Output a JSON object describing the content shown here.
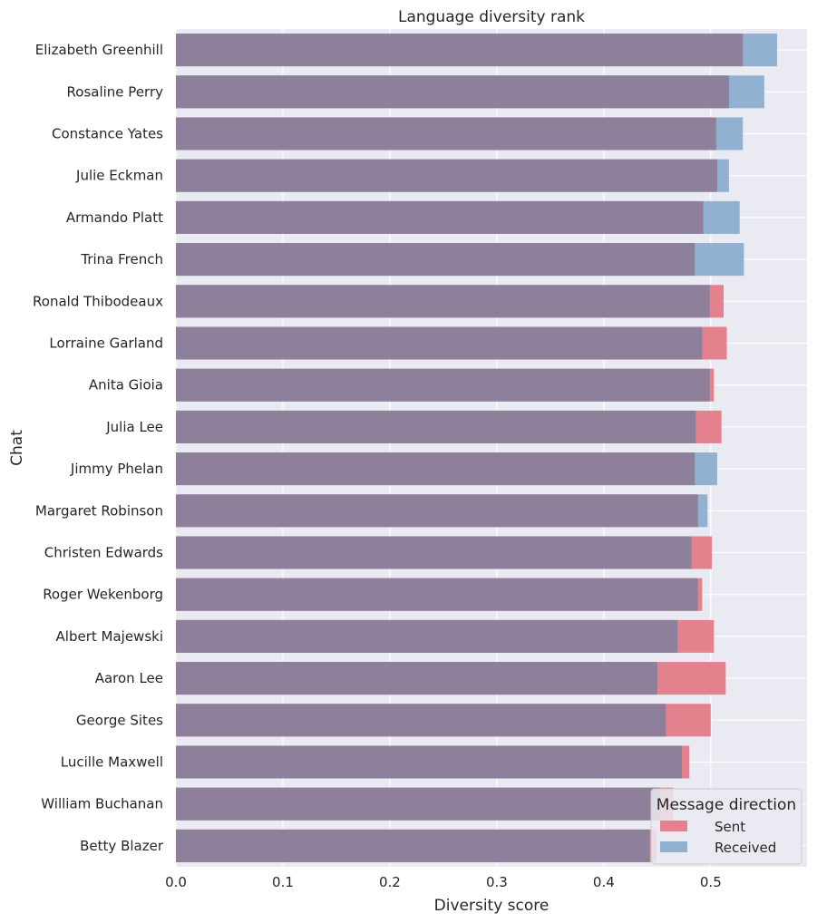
{
  "chart_data": {
    "type": "bar",
    "orientation": "horizontal",
    "title": "Language diversity rank",
    "xlabel": "Diversity score",
    "ylabel": "Chat",
    "xlim": [
      0,
      0.59
    ],
    "xticks": [
      "0.0",
      "0.1",
      "0.2",
      "0.3",
      "0.4",
      "0.5"
    ],
    "grid": true,
    "legend": {
      "title": "Message direction",
      "placement": "bottom-right",
      "entries": [
        "Sent",
        "Received"
      ]
    },
    "categories": [
      "Elizabeth Greenhill",
      "Rosaline Perry",
      "Constance Yates",
      "Julie Eckman",
      "Armando Platt",
      "Trina French",
      "Ronald Thibodeaux",
      "Lorraine Garland",
      "Anita Gioia",
      "Julia Lee",
      "Jimmy Phelan",
      "Margaret Robinson",
      "Christen Edwards",
      "Roger Wekenborg",
      "Albert Majewski",
      "Aaron Lee",
      "George Sites",
      "Lucille Maxwell",
      "William Buchanan",
      "Betty Blazer"
    ],
    "series": [
      {
        "name": "Sent",
        "color": "#e3828c",
        "values": [
          0.53,
          0.517,
          0.505,
          0.506,
          0.493,
          0.485,
          0.512,
          0.515,
          0.503,
          0.51,
          0.485,
          0.488,
          0.501,
          0.492,
          0.503,
          0.514,
          0.5,
          0.48,
          0.465,
          0.449
        ]
      },
      {
        "name": "Received",
        "color": "#92b0cf",
        "values": [
          0.562,
          0.55,
          0.53,
          0.517,
          0.527,
          0.531,
          0.499,
          0.492,
          0.499,
          0.486,
          0.506,
          0.497,
          0.482,
          0.488,
          0.469,
          0.45,
          0.458,
          0.473,
          0.453,
          0.443
        ]
      }
    ],
    "overlap_color": "#8e7f9a"
  }
}
